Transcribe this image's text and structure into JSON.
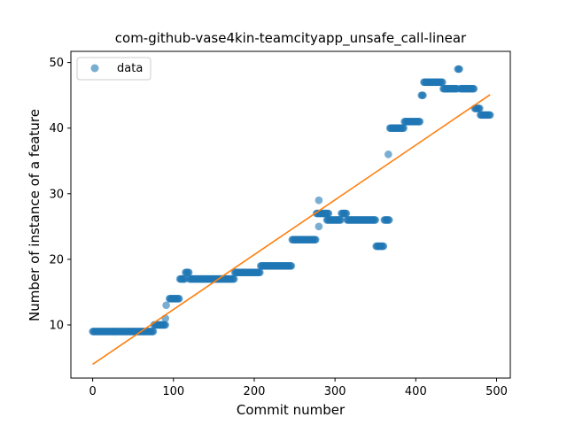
{
  "chart_data": {
    "type": "scatter",
    "title": "com-github-vase4kin-teamcityapp_unsafe_call-linear",
    "xlabel": "Commit number",
    "ylabel": "Number of instance of a feature",
    "xlim": [
      -27,
      517
    ],
    "ylim": [
      1.9,
      51.7
    ],
    "xticks": [
      0,
      100,
      200,
      300,
      400,
      500
    ],
    "yticks": [
      10,
      20,
      30,
      40,
      50
    ],
    "grid": false,
    "legend": {
      "position": "top-left",
      "entries": [
        "data"
      ]
    },
    "colors": {
      "data": "#1f77b4",
      "fit": "#ff7f0e"
    },
    "series": [
      {
        "name": "data",
        "kind": "points",
        "segments": [
          {
            "x_start": 0,
            "x_end": 75,
            "y": 9
          },
          {
            "x_start": 76,
            "x_end": 90,
            "y": 10
          },
          {
            "x_start": 95,
            "x_end": 107,
            "y": 14
          },
          {
            "x_start": 108,
            "x_end": 114,
            "y": 17
          },
          {
            "x_start": 115,
            "x_end": 119,
            "y": 18
          },
          {
            "x_start": 120,
            "x_end": 175,
            "y": 17
          },
          {
            "x_start": 176,
            "x_end": 207,
            "y": 18
          },
          {
            "x_start": 208,
            "x_end": 246,
            "y": 19
          },
          {
            "x_start": 247,
            "x_end": 276,
            "y": 23
          },
          {
            "x_start": 277,
            "x_end": 292,
            "y": 27
          },
          {
            "x_start": 290,
            "x_end": 307,
            "y": 26
          },
          {
            "x_start": 308,
            "x_end": 314,
            "y": 27
          },
          {
            "x_start": 315,
            "x_end": 350,
            "y": 26
          },
          {
            "x_start": 351,
            "x_end": 360,
            "y": 22
          },
          {
            "x_start": 361,
            "x_end": 367,
            "y": 26
          },
          {
            "x_start": 368,
            "x_end": 385,
            "y": 40
          },
          {
            "x_start": 386,
            "x_end": 405,
            "y": 41
          },
          {
            "x_start": 407,
            "x_end": 409,
            "y": 45
          },
          {
            "x_start": 410,
            "x_end": 433,
            "y": 47
          },
          {
            "x_start": 434,
            "x_end": 451,
            "y": 46
          },
          {
            "x_start": 452,
            "x_end": 454,
            "y": 49
          },
          {
            "x_start": 455,
            "x_end": 472,
            "y": 46
          },
          {
            "x_start": 473,
            "x_end": 479,
            "y": 43
          },
          {
            "x_start": 480,
            "x_end": 492,
            "y": 42
          }
        ],
        "points": [
          {
            "x": 90,
            "y": 11
          },
          {
            "x": 91,
            "y": 13
          },
          {
            "x": 280,
            "y": 29
          },
          {
            "x": 280,
            "y": 25
          },
          {
            "x": 366,
            "y": 36
          }
        ]
      },
      {
        "name": "",
        "kind": "line",
        "x": [
          0,
          492
        ],
        "y": [
          4,
          45.1
        ]
      }
    ]
  }
}
